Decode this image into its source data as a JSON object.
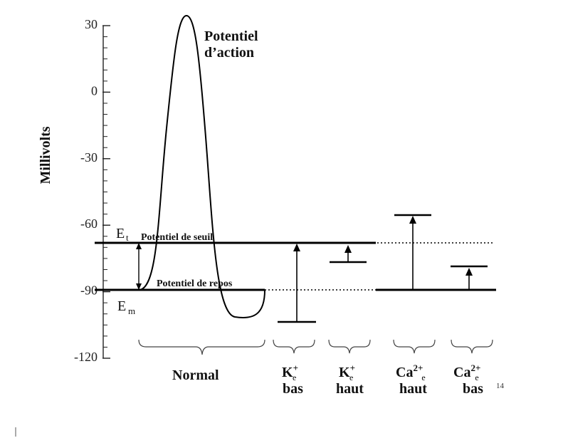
{
  "axis": {
    "title": "Millivolts",
    "ticks": [
      {
        "value": 30,
        "label": "30"
      },
      {
        "value": 0,
        "label": "0"
      },
      {
        "value": -30,
        "label": "-30"
      },
      {
        "value": -60,
        "label": "-60"
      },
      {
        "value": -90,
        "label": "-90"
      },
      {
        "value": -120,
        "label": "-120"
      }
    ],
    "ylim": [
      -120,
      30
    ],
    "minor_step": 5
  },
  "levels": {
    "threshold": -69,
    "rest": -90,
    "threshold_symbol": "E",
    "threshold_subscript": "t",
    "rest_symbol": "E",
    "rest_subscript": "m",
    "threshold_label": "Potentiel de seuil",
    "rest_label": "Potentiel de repos"
  },
  "action_potential": {
    "title_line1": "Potentiel",
    "title_line2": "d’action",
    "peak": 34,
    "undershoot": -102
  },
  "conditions": [
    {
      "key": "normal",
      "line1": "Normal",
      "line2": "",
      "sup": "",
      "sub": ""
    },
    {
      "key": "k_low",
      "line1": "K",
      "sup": "+",
      "sub": "e",
      "line2": "bas",
      "rest": -90,
      "threshold": -69,
      "marker": -104
    },
    {
      "key": "k_high",
      "line1": "K",
      "sup": "+",
      "sub": "e",
      "line2": "haut",
      "rest": -77,
      "threshold": -69
    },
    {
      "key": "ca_high",
      "line1": "Ca",
      "sup": "2+",
      "sub": "e",
      "line2": "haut",
      "rest": -90,
      "threshold": -56
    },
    {
      "key": "ca_low",
      "line1": "Ca",
      "sup": "2+",
      "sub": "e",
      "line2": "bas",
      "rest": -90,
      "threshold": -79,
      "ref": "14"
    }
  ]
}
